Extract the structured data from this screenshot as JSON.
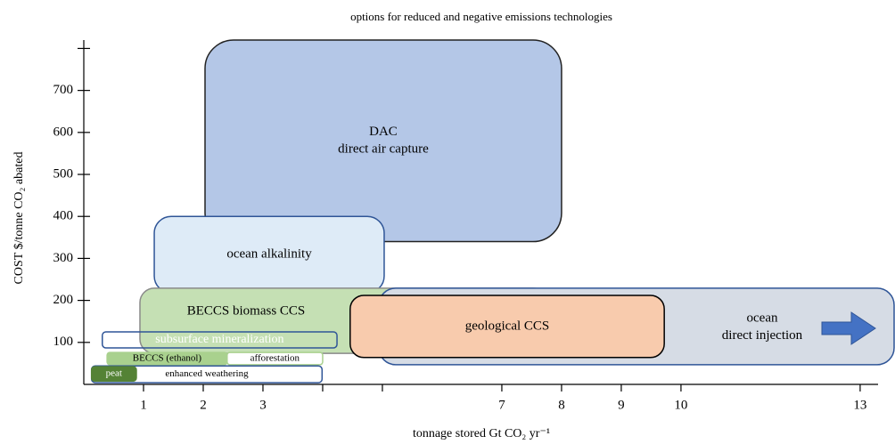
{
  "chart_data": {
    "type": "region",
    "title": "options for reduced and negative emissions technologies",
    "xlabel": "tonnage stored Gt CO₂ yr⁻¹",
    "ylabel": "COST $/tonne CO₂ abated",
    "xlim": [
      0,
      13.3
    ],
    "ylim": [
      0,
      820
    ],
    "xticks": [
      1,
      2,
      3,
      7,
      8,
      9,
      10,
      13
    ],
    "minor_xticks": [
      4,
      5
    ],
    "yticks": [
      100,
      200,
      300,
      400,
      500,
      600,
      700
    ],
    "minor_yticks": [
      800
    ],
    "regions": [
      {
        "lines": [
          "DAC",
          "direct air capture"
        ],
        "x": [
          2.03,
          8.0
        ],
        "y": [
          340,
          820
        ],
        "color": "#b4c7e7",
        "stroke": "#222222",
        "text_color": "#000000"
      },
      {
        "lines": [
          "ocean alkalinity"
        ],
        "x": [
          1.18,
          5.03
        ],
        "y": [
          218,
          400
        ],
        "color": "#deebf7",
        "stroke": "#2f5597",
        "text_color": "#000000"
      },
      {
        "lines": [
          "BECCS biomass CCS"
        ],
        "x": [
          0.94,
          7.76
        ],
        "y": [
          74,
          229
        ],
        "color": "#c5e0b4",
        "stroke": "#8a8a8a",
        "text_color": "#000000"
      },
      {
        "lines": [
          "ocean",
          "direct injection"
        ],
        "x": [
          4.94,
          13.6
        ],
        "y": [
          47,
          229
        ],
        "color": "#d6dce5",
        "stroke": "#2f5597",
        "text_color": "#000000"
      },
      {
        "lines": [
          "geological CCS"
        ],
        "x": [
          4.46,
          9.72
        ],
        "y": [
          64,
          212
        ],
        "color": "#f8cbad",
        "stroke": "#000000",
        "text_color": "#000000"
      },
      {
        "lines": [
          "subsurface mineralization"
        ],
        "x": [
          0.31,
          4.24
        ],
        "y": [
          87,
          125
        ],
        "color": "none",
        "stroke": "#2f5597",
        "text_color": "#ffffff"
      },
      {
        "lines": [
          "BECCS (ethanol)"
        ],
        "x": [
          0.39,
          2.4
        ],
        "y": [
          47,
          76
        ],
        "color": "#a9d18e",
        "stroke": "#a9d18e",
        "text_color": "#000000"
      },
      {
        "lines": [
          "afforestation"
        ],
        "x": [
          2.4,
          4.0
        ],
        "y": [
          47,
          76
        ],
        "color": "#ffffff",
        "stroke": "#a9d18e",
        "text_color": "#000000"
      },
      {
        "lines": [
          "enhanced weathering"
        ],
        "x": [
          0.13,
          3.99
        ],
        "y": [
          4,
          44
        ],
        "color": "#ffffff",
        "stroke": "#2f5597",
        "text_color": "#000000"
      },
      {
        "lines": [
          "peat"
        ],
        "x": [
          0.13,
          0.88
        ],
        "y": [
          8,
          42
        ],
        "color": "#548235",
        "stroke": "#548235",
        "text_color": "#ffffff"
      }
    ]
  }
}
